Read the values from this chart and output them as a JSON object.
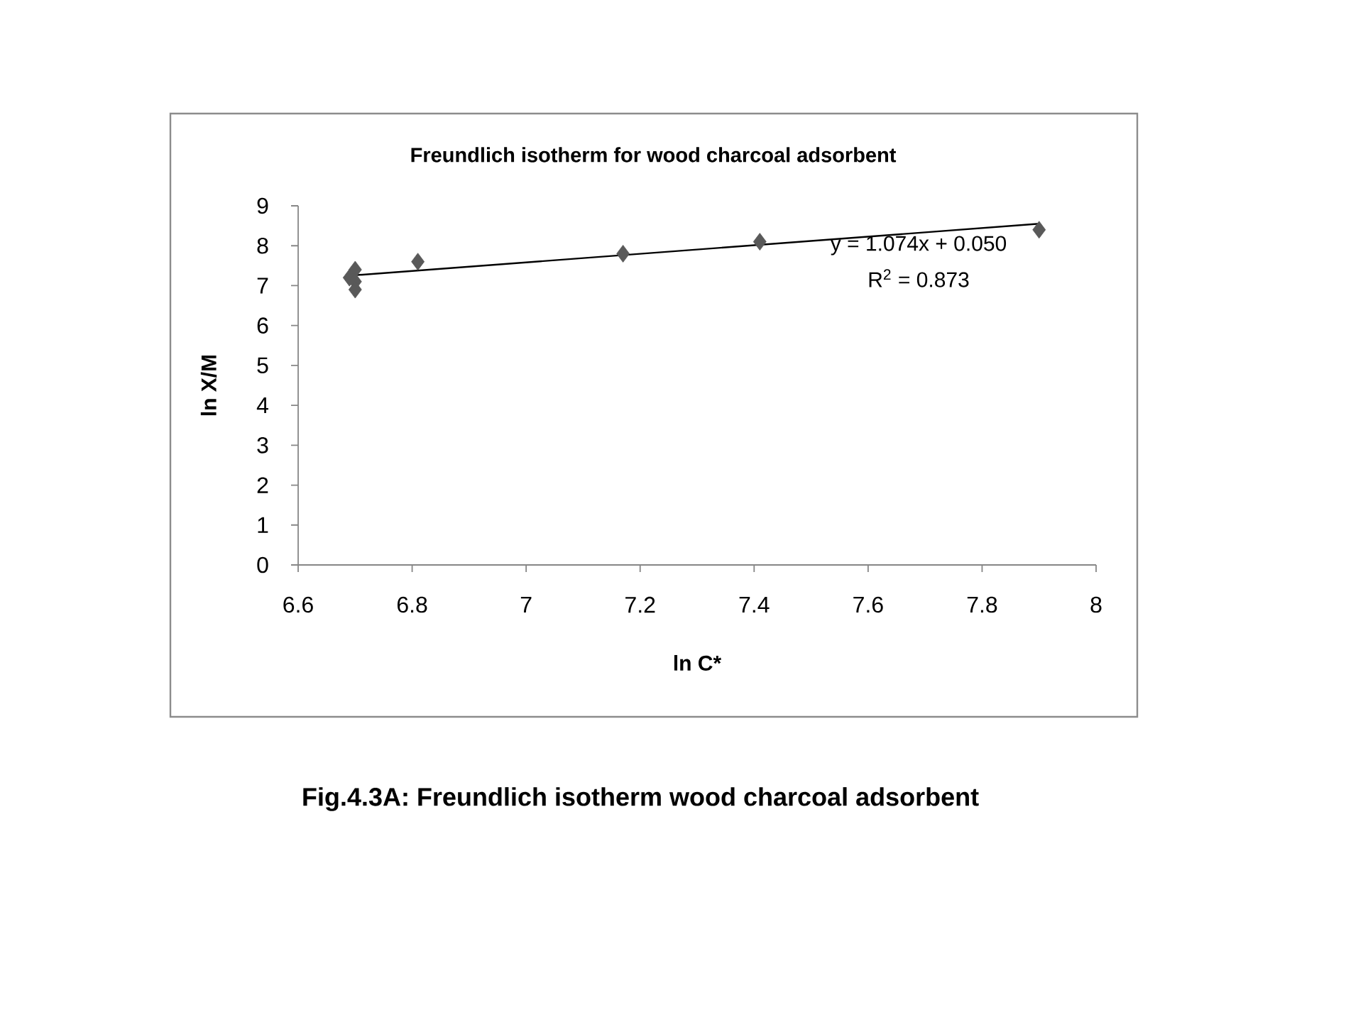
{
  "chart_data": {
    "type": "scatter",
    "title": "Freundlich isotherm for wood charcoal adsorbent",
    "xlabel": "ln C*",
    "ylabel": "ln X/M",
    "series": [
      {
        "type": "scatter",
        "color": "#595959",
        "marker": "diamond",
        "x": [
          6.7,
          6.69,
          6.7,
          6.7,
          6.81,
          7.17,
          7.41,
          7.9
        ],
        "values": [
          7.4,
          7.2,
          7.1,
          6.9,
          7.6,
          7.8,
          8.1,
          8.4
        ]
      },
      {
        "type": "line",
        "color": "#000000",
        "marker": "none",
        "line_style": "solid",
        "x": [
          6.69,
          7.9
        ],
        "values": [
          7.25,
          8.55
        ]
      }
    ],
    "xlim": [
      6.6,
      8
    ],
    "ylim": [
      0,
      9
    ],
    "xticks": [
      6.6,
      6.8,
      7,
      7.2,
      7.4,
      7.6,
      7.8,
      8
    ],
    "yticks": [
      0,
      1,
      2,
      3,
      4,
      5,
      6,
      7,
      8,
      9
    ],
    "annotations": [
      "y = 1.074x + 0.050",
      "R$^{2}$ = 0.873",
      "Fig.4.3A: Freundlich isotherm wood charcoal adsorbent"
    ]
  }
}
